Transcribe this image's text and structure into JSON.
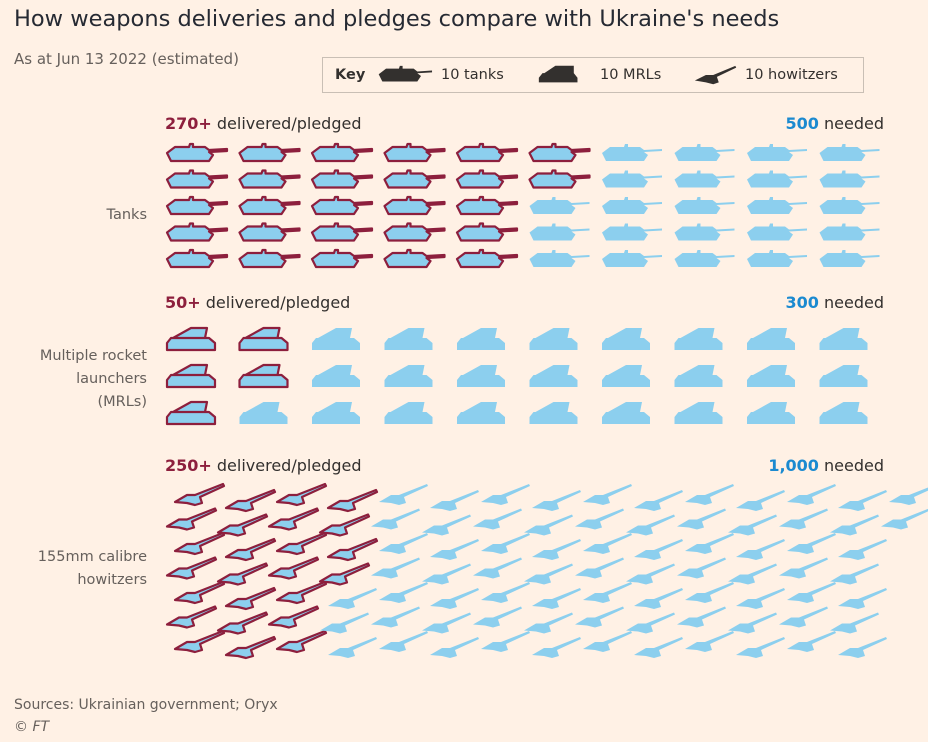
{
  "title": "How weapons deliveries and pledges compare with Ukraine's needs",
  "subtitle": "As at Jun 13 2022 (estimated)",
  "key": {
    "label": "Key",
    "tanks": "10 tanks",
    "mrls": "10 MRLs",
    "howitzers": "10 howitzers",
    "tank_icon": "tank-icon",
    "mrl_icon": "mrl-icon",
    "howitzer_icon": "howitzer-icon"
  },
  "colors": {
    "background": "#fff1e5",
    "delivered_outline": "#8d1f3d",
    "icon_fill": "#8ccfee",
    "needed_text": "#1b8ad0"
  },
  "sections": {
    "tanks": {
      "label": "Tanks",
      "delivered_num": "270+",
      "delivered_text": " delivered/pledged",
      "needed_num": "500",
      "needed_text": " needed"
    },
    "mrls": {
      "label": "Multiple rocket launchers (MRLs)",
      "label_lines": [
        "Multiple rocket",
        "launchers",
        "(MRLs)"
      ],
      "delivered_num": "50+",
      "delivered_text": " delivered/pledged",
      "needed_num": "300",
      "needed_text": " needed"
    },
    "howitzers": {
      "label": "155mm calibre howitzers",
      "label_lines": [
        "155mm calibre",
        "howitzers"
      ],
      "delivered_num": "250+",
      "delivered_text": " delivered/pledged",
      "needed_num": "1,000",
      "needed_text": " needed"
    }
  },
  "chart_data": {
    "type": "table",
    "unit": "each icon = 10 units",
    "categories": [
      "Tanks",
      "Multiple rocket launchers (MRLs)",
      "155mm calibre howitzers"
    ],
    "series": [
      {
        "name": "delivered/pledged",
        "values": [
          270,
          50,
          250
        ]
      },
      {
        "name": "needed",
        "values": [
          500,
          300,
          1000
        ]
      }
    ],
    "icons_delivered": [
      27,
      5,
      25
    ],
    "icons_needed": [
      50,
      30,
      100
    ]
  },
  "source": "Sources: Ukrainian government; Oryx",
  "copyright": "© FT"
}
